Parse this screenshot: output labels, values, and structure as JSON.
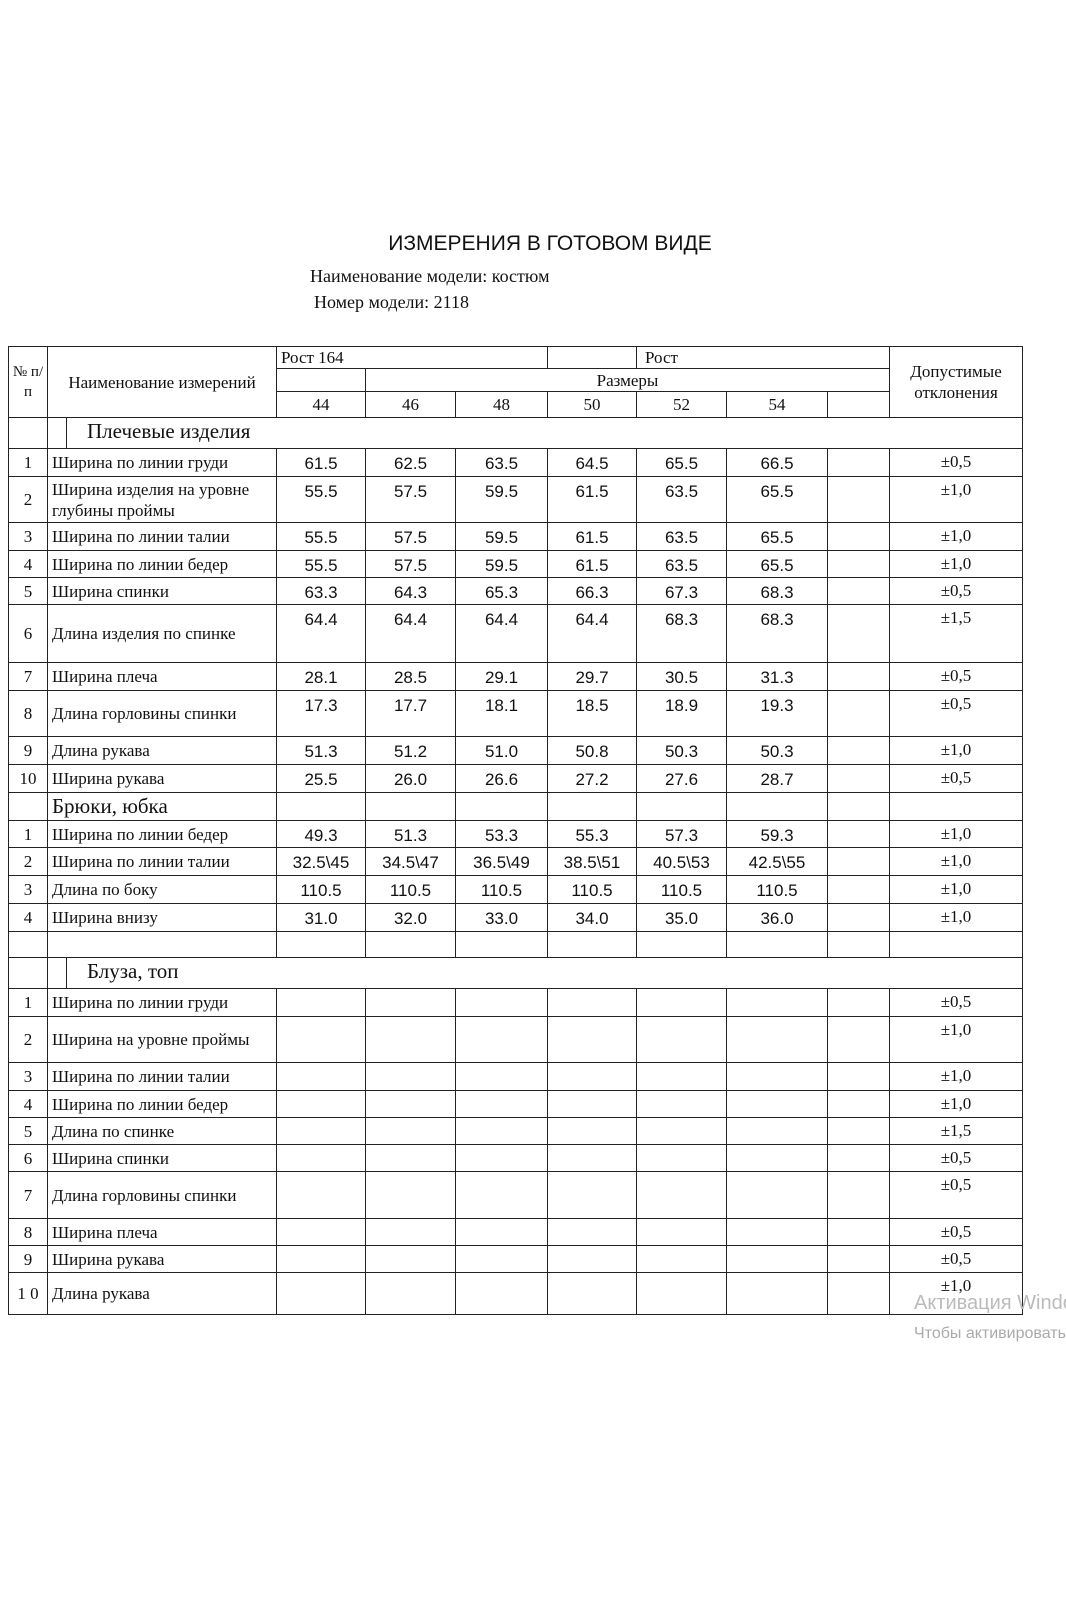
{
  "title": "ИЗМЕРЕНИЯ В ГОТОВОМ ВИДЕ",
  "model_name": "Наименование модели: костюм",
  "model_number": "Номер модели: 2118",
  "header": {
    "no": "№ п/ п",
    "name": "Наименование измерений",
    "rost1": "Рост 164",
    "rost2": "Рост",
    "sizes_label": "Размеры",
    "sizes": [
      "44",
      "46",
      "48",
      "50",
      "52",
      "54",
      ""
    ],
    "tolerance": "Допустимые отклонения"
  },
  "sections": [
    {
      "title": "Плечевые изделия",
      "rows": [
        {
          "no": "1",
          "name": "Ширина по линии груди",
          "values": [
            "61.5",
            "62.5",
            "63.5",
            "64.5",
            "65.5",
            "66.5"
          ],
          "tol": "±0,5",
          "h": 28
        },
        {
          "no": "2",
          "name": "Ширина изделия на уровне глубины проймы",
          "values": [
            "55.5",
            "57.5",
            "59.5",
            "61.5",
            "63.5",
            "65.5"
          ],
          "tol": "±1,0",
          "h": 46
        },
        {
          "no": "3",
          "name": "Ширина по линии талии",
          "values": [
            "55.5",
            "57.5",
            "59.5",
            "61.5",
            "63.5",
            "65.5"
          ],
          "tol": "±1,0",
          "h": 28
        },
        {
          "no": "4",
          "name": "Ширина по линии бедер",
          "values": [
            "55.5",
            "57.5",
            "59.5",
            "61.5",
            "63.5",
            "65.5"
          ],
          "tol": "±1,0",
          "h": 27
        },
        {
          "no": "5",
          "name": "Ширина спинки",
          "values": [
            "63.3",
            "64.3",
            "65.3",
            "66.3",
            "67.3",
            "68.3"
          ],
          "tol": "±0,5",
          "h": 27
        },
        {
          "no": "6",
          "name": "Длина изделия по спинке",
          "values": [
            "64.4",
            "64.4",
            "64.4",
            "64.4",
            "68.3",
            "68.3"
          ],
          "tol": "±1,5",
          "h": 58
        },
        {
          "no": "7",
          "name": "Ширина плеча",
          "values": [
            "28.1",
            "28.5",
            "29.1",
            "29.7",
            "30.5",
            "31.3"
          ],
          "tol": "±0,5",
          "h": 28
        },
        {
          "no": "8",
          "name": "Длина горловины спинки",
          "values": [
            "17.3",
            "17.7",
            "18.1",
            "18.5",
            "18.9",
            "19.3"
          ],
          "tol": "±0,5",
          "h": 46
        },
        {
          "no": "9",
          "name": "Длина рукава",
          "values": [
            "51.3",
            "51.2",
            "51.0",
            "50.8",
            "50.3",
            "50.3"
          ],
          "tol": "±1,0",
          "h": 28
        },
        {
          "no": "10",
          "name": "Ширина рукава",
          "values": [
            "25.5",
            "26.0",
            "26.6",
            "27.2",
            "27.6",
            "28.7"
          ],
          "tol": "±0,5",
          "h": 28
        }
      ]
    },
    {
      "title": "Брюки, юбка",
      "rows": [
        {
          "no": "1",
          "name": "Ширина по линии бедер",
          "values": [
            "49.3",
            "51.3",
            "53.3",
            "55.3",
            "57.3",
            "59.3"
          ],
          "tol": "±1,0",
          "h": 27
        },
        {
          "no": "2",
          "name": "Ширина по линии талии",
          "values": [
            "32.5\\45",
            "34.5\\47",
            "36.5\\49",
            "38.5\\51",
            "40.5\\53",
            "42.5\\55"
          ],
          "tol": "±1,0",
          "h": 28
        },
        {
          "no": "3",
          "name": "Длина по боку",
          "values": [
            "110.5",
            "110.5",
            "110.5",
            "110.5",
            "110.5",
            "110.5"
          ],
          "tol": "±1,0",
          "h": 28
        },
        {
          "no": "4",
          "name": "Ширина внизу",
          "values": [
            "31.0",
            "32.0",
            "33.0",
            "34.0",
            "35.0",
            "36.0"
          ],
          "tol": "±1,0",
          "h": 28
        },
        {
          "no": "",
          "name": "",
          "values": [
            "",
            "",
            "",
            "",
            "",
            ""
          ],
          "tol": "",
          "h": 26
        }
      ]
    },
    {
      "title": "Блуза, топ",
      "rows": [
        {
          "no": "1",
          "name": "Ширина по линии груди",
          "values": [
            "",
            "",
            "",
            "",
            "",
            ""
          ],
          "tol": "±0,5",
          "h": 28
        },
        {
          "no": "2",
          "name": "Ширина на уровне проймы",
          "values": [
            "",
            "",
            "",
            "",
            "",
            ""
          ],
          "tol": "±1,0",
          "h": 46
        },
        {
          "no": "3",
          "name": "Ширина по линии талии",
          "values": [
            "",
            "",
            "",
            "",
            "",
            ""
          ],
          "tol": "±1,0",
          "h": 28
        },
        {
          "no": "4",
          "name": "Ширина по линии бедер",
          "values": [
            "",
            "",
            "",
            "",
            "",
            ""
          ],
          "tol": "±1,0",
          "h": 27
        },
        {
          "no": "5",
          "name": "Длина по спинке",
          "values": [
            "",
            "",
            "",
            "",
            "",
            ""
          ],
          "tol": "±1,5",
          "h": 27
        },
        {
          "no": "6",
          "name": "Ширина спинки",
          "values": [
            "",
            "",
            "",
            "",
            "",
            ""
          ],
          "tol": "±0,5",
          "h": 27
        },
        {
          "no": "7",
          "name": "Длина горловины спинки",
          "values": [
            "",
            "",
            "",
            "",
            "",
            ""
          ],
          "tol": "±0,5",
          "h": 47
        },
        {
          "no": "8",
          "name": "Ширина плеча",
          "values": [
            "",
            "",
            "",
            "",
            "",
            ""
          ],
          "tol": "±0,5",
          "h": 27
        },
        {
          "no": "9",
          "name": "Ширина рукава",
          "values": [
            "",
            "",
            "",
            "",
            "",
            ""
          ],
          "tol": "±0,5",
          "h": 27
        },
        {
          "no": "1 0",
          "name": "Длина рукава",
          "values": [
            "",
            "",
            "",
            "",
            "",
            ""
          ],
          "tol": "±1,0",
          "h": 42
        }
      ]
    }
  ],
  "watermark": {
    "line1": "Активация Windows",
    "line2": "Чтобы активировать Windows"
  }
}
